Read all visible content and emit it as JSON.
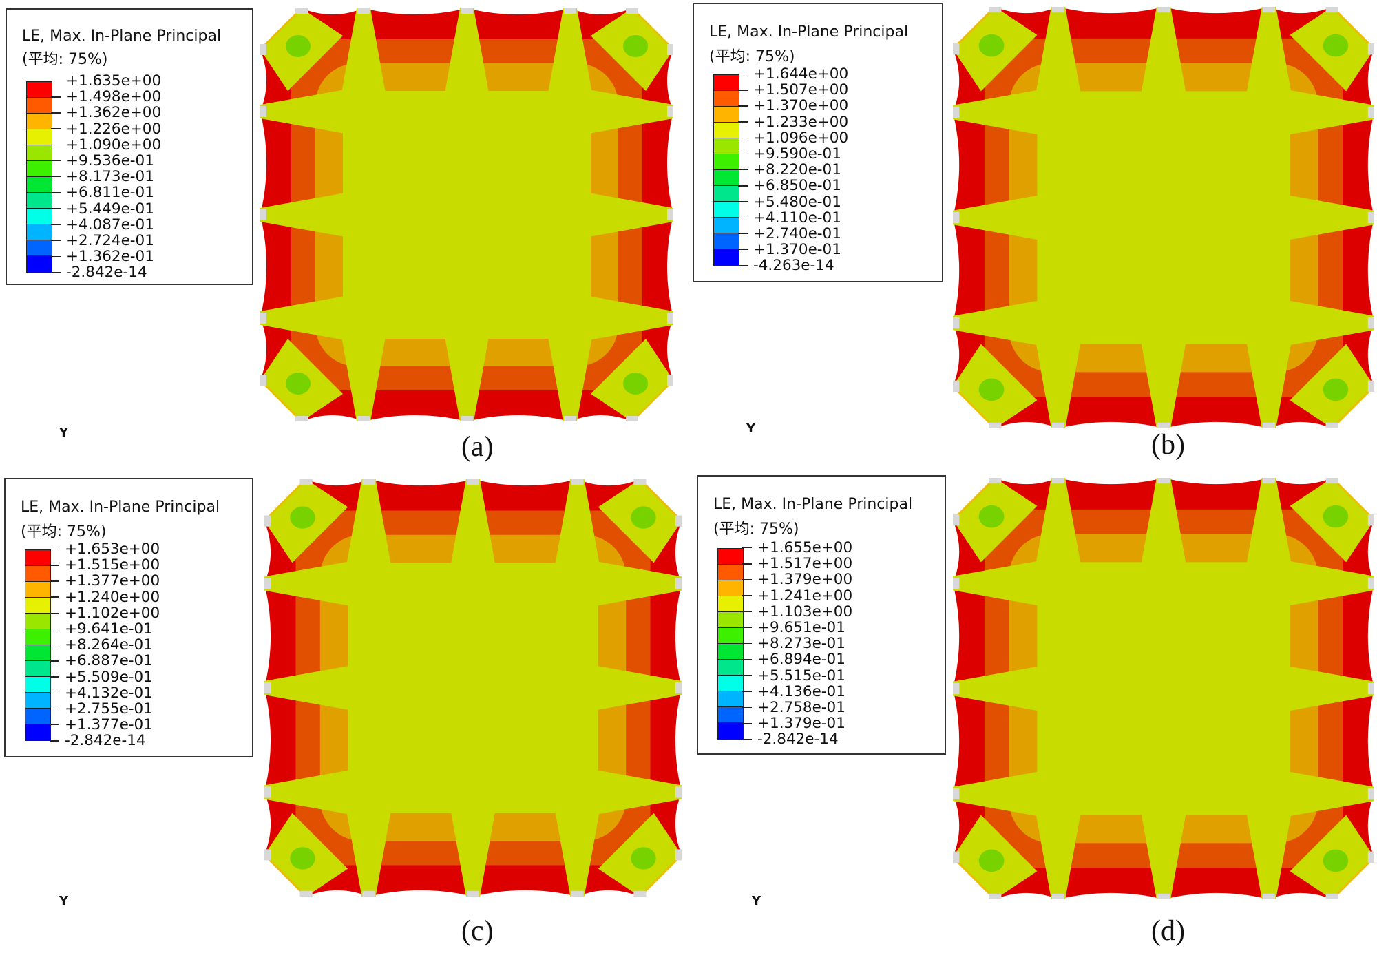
{
  "figure": {
    "panels": [
      {
        "label": "(a)",
        "legend": {
          "title": "LE, Max. In-Plane Principal",
          "subtitle": "(平均: 75%)",
          "ticks": [
            "+1.635e+00",
            "+1.498e+00",
            "+1.362e+00",
            "+1.226e+00",
            "+1.090e+00",
            "+9.536e-01",
            "+8.173e-01",
            "+6.811e-01",
            "+5.449e-01",
            "+4.087e-01",
            "+2.724e-01",
            "+1.362e-01",
            "-2.842e-14"
          ]
        },
        "axis_label": "Y"
      },
      {
        "label": "(b)",
        "legend": {
          "title": "LE, Max. In-Plane Principal",
          "subtitle": "(平均: 75%)",
          "ticks": [
            "+1.644e+00",
            "+1.507e+00",
            "+1.370e+00",
            "+1.233e+00",
            "+1.096e+00",
            "+9.590e-01",
            "+8.220e-01",
            "+6.850e-01",
            "+5.480e-01",
            "+4.110e-01",
            "+2.740e-01",
            "+1.370e-01",
            "-4.263e-14"
          ]
        },
        "axis_label": "Y"
      },
      {
        "label": "(c)",
        "legend": {
          "title": "LE, Max. In-Plane Principal",
          "subtitle": "(平均: 75%)",
          "ticks": [
            "+1.653e+00",
            "+1.515e+00",
            "+1.377e+00",
            "+1.240e+00",
            "+1.102e+00",
            "+9.641e-01",
            "+8.264e-01",
            "+6.887e-01",
            "+5.509e-01",
            "+4.132e-01",
            "+2.755e-01",
            "+1.377e-01",
            "-2.842e-14"
          ]
        },
        "axis_label": "Y"
      },
      {
        "label": "(d)",
        "legend": {
          "title": "LE, Max. In-Plane Principal",
          "subtitle": "(平均: 75%)",
          "ticks": [
            "+1.655e+00",
            "+1.517e+00",
            "+1.379e+00",
            "+1.241e+00",
            "+1.103e+00",
            "+9.651e-01",
            "+8.273e-01",
            "+6.894e-01",
            "+5.515e-01",
            "+4.136e-01",
            "+2.758e-01",
            "+1.379e-01",
            "-2.842e-14"
          ]
        },
        "axis_label": "Y"
      }
    ],
    "colormap": [
      "#ff0000",
      "#ff5a00",
      "#ffb400",
      "#e6f000",
      "#9ae600",
      "#3cf000",
      "#00e632",
      "#00e68c",
      "#00ffe6",
      "#00b4ff",
      "#0064ff",
      "#0000ff"
    ],
    "plot_colors": {
      "outer_red": "#dd0000",
      "orange_red": "#e05000",
      "orange": "#e0a000",
      "center_yellow_green": "#c8dc00",
      "green_patch": "#78d200",
      "node_gray": "#d8d8d8"
    }
  },
  "chart_data": [
    {
      "type": "heatmap",
      "title": "LE, Max. In-Plane Principal (平均: 75%)",
      "panel": "(a)",
      "legend_levels": [
        1.635,
        1.498,
        1.362,
        1.226,
        1.09,
        0.9536,
        0.8173,
        0.6811,
        0.5449,
        0.4087,
        0.2724,
        0.1362,
        -2.842e-14
      ],
      "vmin": -2.842e-14,
      "vmax": 1.635
    },
    {
      "type": "heatmap",
      "title": "LE, Max. In-Plane Principal (平均: 75%)",
      "panel": "(b)",
      "legend_levels": [
        1.644,
        1.507,
        1.37,
        1.233,
        1.096,
        0.959,
        0.822,
        0.685,
        0.548,
        0.411,
        0.274,
        0.137,
        -4.263e-14
      ],
      "vmin": -4.263e-14,
      "vmax": 1.644
    },
    {
      "type": "heatmap",
      "title": "LE, Max. In-Plane Principal (平均: 75%)",
      "panel": "(c)",
      "legend_levels": [
        1.653,
        1.515,
        1.377,
        1.24,
        1.102,
        0.9641,
        0.8264,
        0.6887,
        0.5509,
        0.4132,
        0.2755,
        0.1377,
        -2.842e-14
      ],
      "vmin": -2.842e-14,
      "vmax": 1.653
    },
    {
      "type": "heatmap",
      "title": "LE, Max. In-Plane Principal (平均: 75%)",
      "panel": "(d)",
      "legend_levels": [
        1.655,
        1.517,
        1.379,
        1.241,
        1.103,
        0.9651,
        0.8273,
        0.6894,
        0.5515,
        0.4136,
        0.2758,
        0.1379,
        -2.842e-14
      ],
      "vmin": -2.842e-14,
      "vmax": 1.655
    }
  ]
}
